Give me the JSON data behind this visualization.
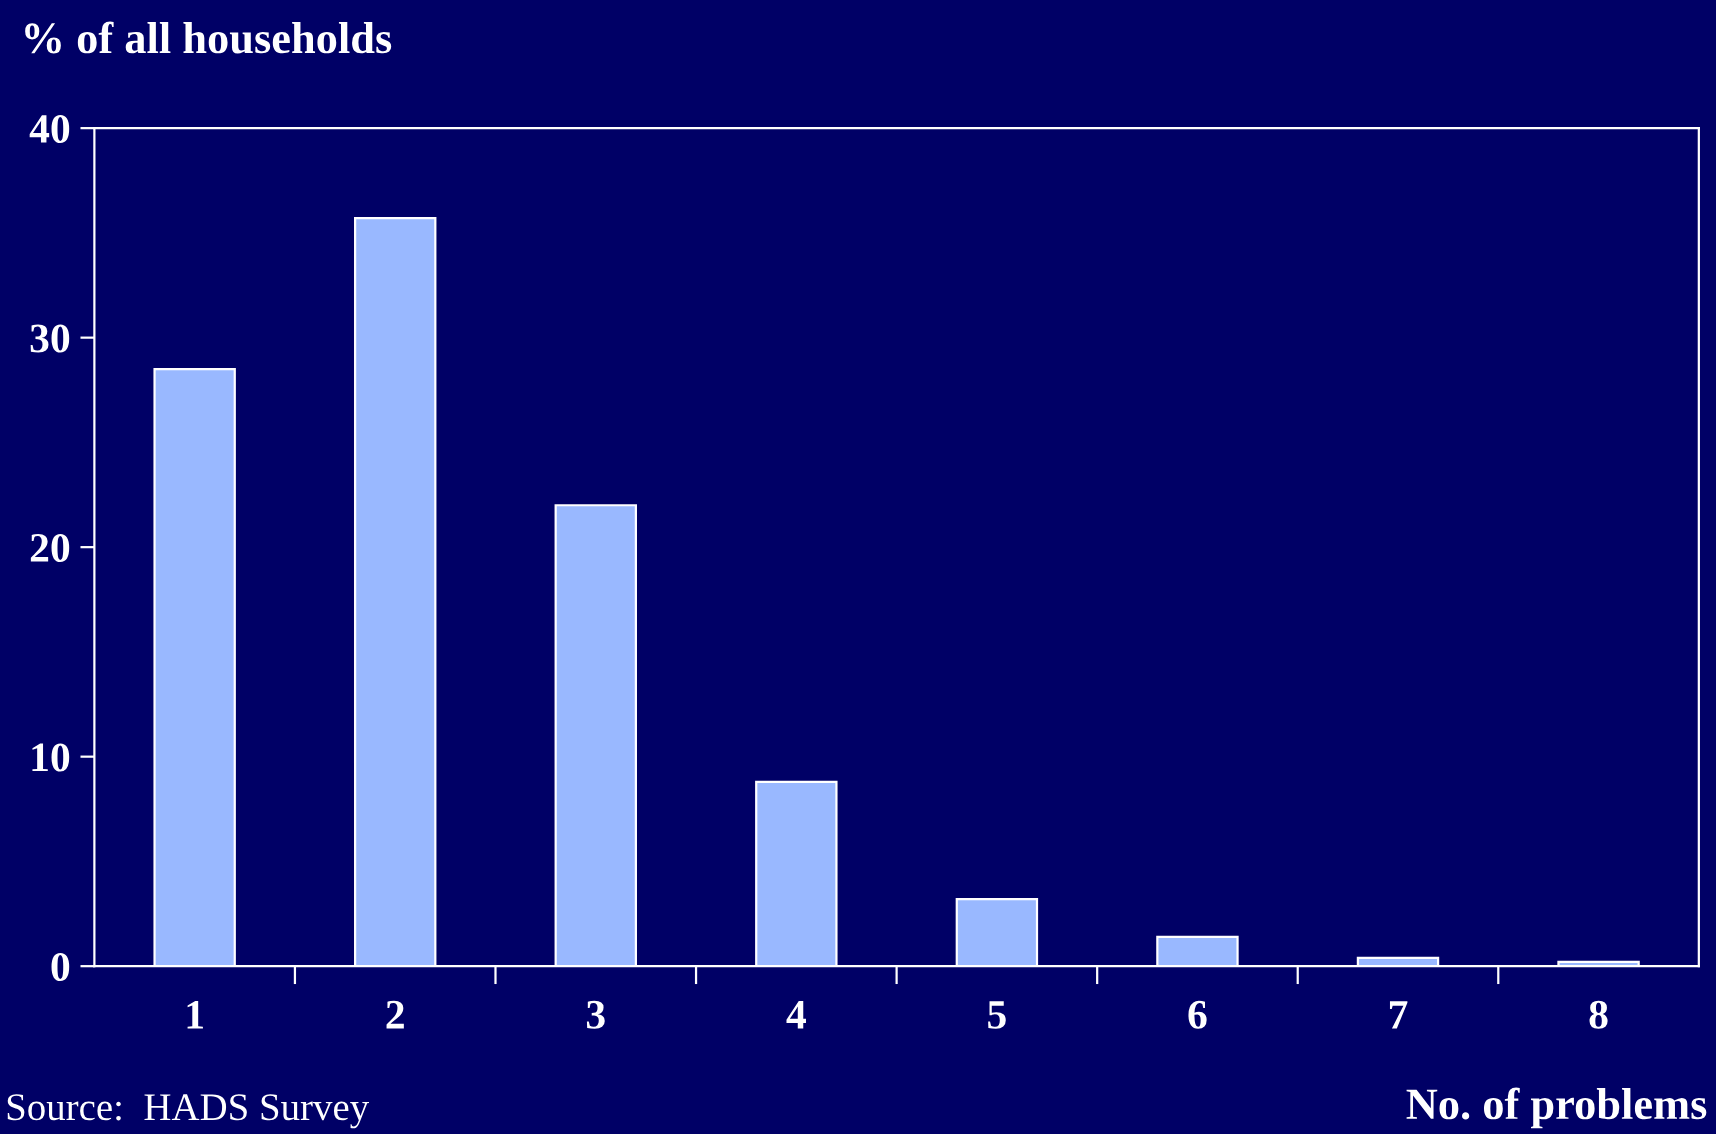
{
  "chart_data": {
    "type": "bar",
    "ylabel": "% of all households",
    "xlabel": "No. of problems",
    "categories": [
      "1",
      "2",
      "3",
      "4",
      "5",
      "6",
      "7",
      "8"
    ],
    "values": [
      28.5,
      35.7,
      22.0,
      8.8,
      3.2,
      1.4,
      0.4,
      0.2
    ],
    "color": "#99b8ff",
    "ylim": [
      0,
      40
    ],
    "yticks": [
      0,
      10,
      20,
      30,
      40
    ],
    "grid": false,
    "legend": false,
    "annotations": [
      "Source:  HADS Survey"
    ]
  }
}
